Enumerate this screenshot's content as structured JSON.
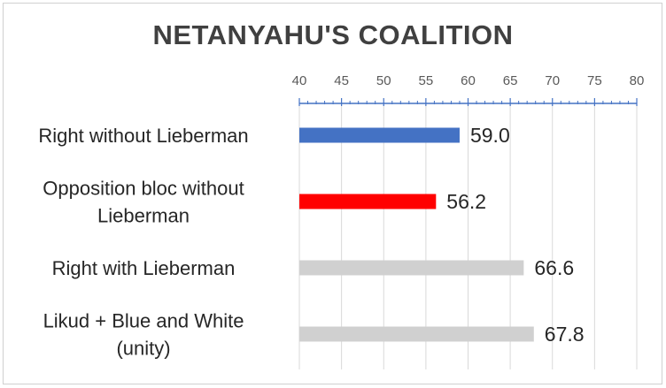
{
  "chart_data": {
    "type": "bar",
    "orientation": "horizontal",
    "title": "NETANYAHU'S COALITION",
    "categories": [
      "Right without Lieberman",
      "Opposition bloc without Lieberman",
      "Right with Lieberman",
      "Likud + Blue and White (unity)"
    ],
    "category_label_lines": [
      [
        "Right without Lieberman"
      ],
      [
        "Opposition bloc without",
        "Lieberman"
      ],
      [
        "Right with Lieberman"
      ],
      [
        "Likud + Blue and White",
        "(unity)"
      ]
    ],
    "values": [
      59.0,
      56.2,
      66.6,
      67.8
    ],
    "data_labels": [
      "59.0",
      "56.2",
      "66.6",
      "67.8"
    ],
    "bar_colors": [
      "#4472c4",
      "#ff0000",
      "#d0d0d0",
      "#d0d0d0"
    ],
    "xlim": [
      40,
      80
    ],
    "x_ticks": [
      40,
      45,
      50,
      55,
      60,
      65,
      70,
      75,
      80
    ],
    "x_axis_position": "top",
    "axis_color": "#4472c4",
    "gridlines": true,
    "legend": "none"
  }
}
